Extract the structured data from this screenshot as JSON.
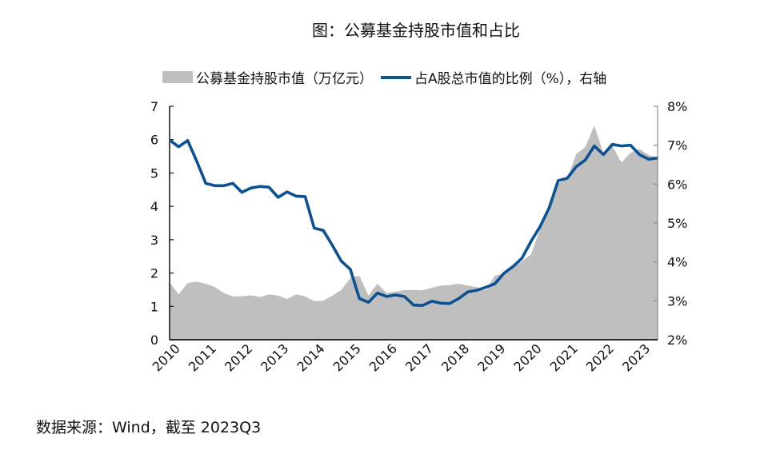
{
  "chart_data": {
    "type": "area+line",
    "title": "图：公募基金持股市值和占比",
    "legend": [
      "公募基金持股市值（万亿元）",
      "占A股总市值的比例（%），右轴"
    ],
    "legend_placement": "top",
    "x_tick_labels": [
      "2010",
      "2011",
      "2012",
      "2013",
      "2014",
      "2015",
      "2016",
      "2017",
      "2018",
      "2019",
      "2020",
      "2021",
      "2022",
      "2023"
    ],
    "x_frequency": "quarterly, 2010Q1-2023Q3",
    "y_left": {
      "ylim": [
        0,
        7
      ],
      "ticks": [
        "0",
        "1",
        "2",
        "3",
        "4",
        "5",
        "6",
        "7"
      ]
    },
    "y_right": {
      "ylim": [
        2,
        8
      ],
      "ticks": [
        "2%",
        "3%",
        "4%",
        "5%",
        "6%",
        "7%",
        "8%"
      ]
    },
    "series": [
      {
        "name": "公募基金持股市值（万亿元）",
        "kind": "area",
        "axis": "left",
        "color": "#bfbfbf",
        "values": [
          1.72,
          1.36,
          1.7,
          1.74,
          1.68,
          1.58,
          1.4,
          1.3,
          1.3,
          1.33,
          1.28,
          1.36,
          1.32,
          1.22,
          1.36,
          1.3,
          1.16,
          1.17,
          1.32,
          1.49,
          1.85,
          1.92,
          1.32,
          1.68,
          1.4,
          1.44,
          1.49,
          1.49,
          1.48,
          1.56,
          1.62,
          1.64,
          1.68,
          1.62,
          1.58,
          1.48,
          1.92,
          1.99,
          2.16,
          2.36,
          2.56,
          3.32,
          4.04,
          4.68,
          4.84,
          5.57,
          5.78,
          6.42,
          5.6,
          5.8,
          5.32,
          5.6,
          5.72,
          5.54,
          5.46
        ]
      },
      {
        "name": "占A股总市值的比例（%），右轴",
        "kind": "line",
        "axis": "right",
        "color": "#0d5191",
        "values": [
          7.13,
          6.96,
          7.12,
          6.59,
          6.02,
          5.96,
          5.96,
          6.02,
          5.79,
          5.9,
          5.94,
          5.92,
          5.66,
          5.8,
          5.69,
          5.68,
          4.87,
          4.81,
          4.43,
          4.02,
          3.81,
          3.06,
          2.96,
          3.2,
          3.11,
          3.15,
          3.11,
          2.89,
          2.88,
          2.99,
          2.94,
          2.93,
          3.06,
          3.23,
          3.27,
          3.35,
          3.44,
          3.71,
          3.88,
          4.1,
          4.53,
          4.91,
          5.39,
          6.09,
          6.15,
          6.45,
          6.62,
          6.98,
          6.76,
          7.02,
          6.98,
          7.0,
          6.76,
          6.64,
          6.67
        ]
      }
    ],
    "source": "数据来源：Wind，截至 2023Q3"
  }
}
